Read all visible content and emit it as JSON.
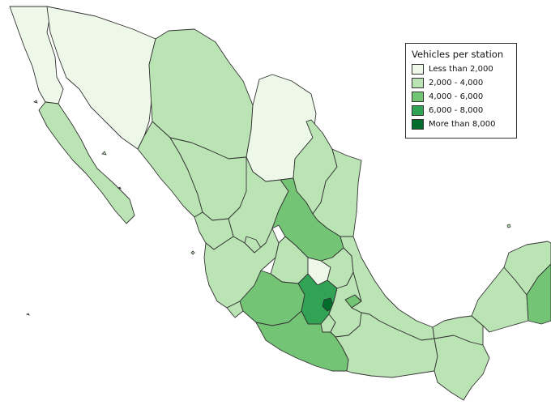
{
  "legend": {
    "title": "Vehicles per station",
    "classes": [
      {
        "label": "Less than 2,000",
        "color": "#edf8e9"
      },
      {
        "label": "2,000 - 4,000",
        "color": "#bae4b3"
      },
      {
        "label": "4,000 - 6,000",
        "color": "#74c476"
      },
      {
        "label": "6,000 - 8,000",
        "color": "#31a354"
      },
      {
        "label": "More than 8,000",
        "color": "#006d2c"
      }
    ]
  },
  "states": [
    {
      "name": "baja-california",
      "class": 0
    },
    {
      "name": "baja-california-sur",
      "class": 1
    },
    {
      "name": "sonora",
      "class": 0
    },
    {
      "name": "chihuahua",
      "class": 1
    },
    {
      "name": "coahuila",
      "class": 0
    },
    {
      "name": "nuevo-leon",
      "class": 1
    },
    {
      "name": "tamaulipas",
      "class": 1
    },
    {
      "name": "sinaloa",
      "class": 1
    },
    {
      "name": "durango",
      "class": 1
    },
    {
      "name": "zacatecas",
      "class": 1
    },
    {
      "name": "san-luis-potosi",
      "class": 2
    },
    {
      "name": "nayarit",
      "class": 1
    },
    {
      "name": "aguascalientes",
      "class": 1
    },
    {
      "name": "jalisco",
      "class": 1
    },
    {
      "name": "guanajuato",
      "class": 1
    },
    {
      "name": "queretaro",
      "class": 0
    },
    {
      "name": "hidalgo",
      "class": 1
    },
    {
      "name": "colima",
      "class": 1
    },
    {
      "name": "michoacan",
      "class": 2
    },
    {
      "name": "mexico-state",
      "class": 3
    },
    {
      "name": "mexico-city",
      "class": 4
    },
    {
      "name": "tlaxcala",
      "class": 2
    },
    {
      "name": "morelos",
      "class": 1
    },
    {
      "name": "puebla",
      "class": 1
    },
    {
      "name": "veracruz",
      "class": 1
    },
    {
      "name": "guerrero",
      "class": 2
    },
    {
      "name": "oaxaca",
      "class": 1
    },
    {
      "name": "chiapas",
      "class": 1
    },
    {
      "name": "tabasco",
      "class": 1
    },
    {
      "name": "campeche",
      "class": 1
    },
    {
      "name": "yucatan",
      "class": 1
    },
    {
      "name": "quintana-roo",
      "class": 2
    }
  ]
}
